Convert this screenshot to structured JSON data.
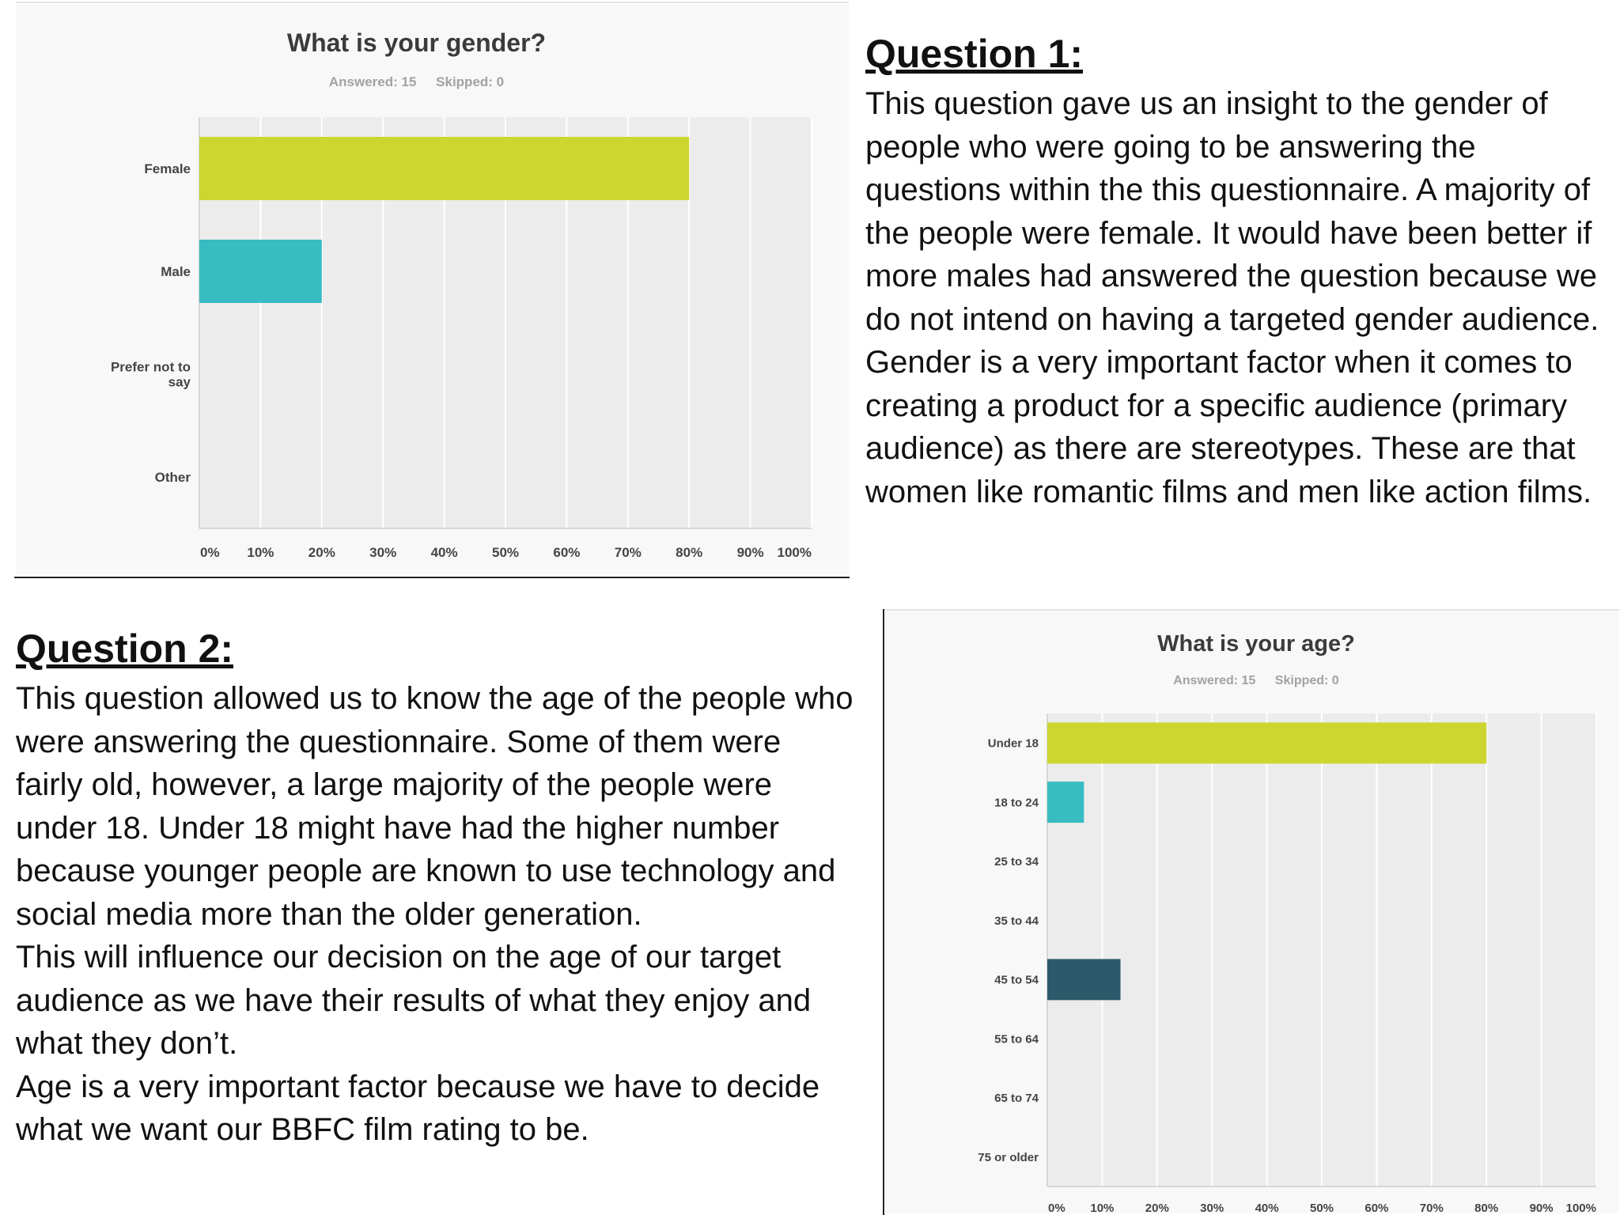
{
  "question1": {
    "heading": "Question 1:",
    "paragraphs": [
      "This question gave us an insight to the gender of people who were going to be answering the questions within the this questionnaire. A majority of the people were female. It would have been better if more males had answered the question because we do not intend on having a targeted gender audience.",
      "Gender is a very important factor when it comes to creating a product for a specific audience (primary audience) as there are stereotypes. These are that women like romantic films and men like action films."
    ]
  },
  "question2": {
    "heading": "Question 2:",
    "paragraphs": [
      "This question allowed us to know the age of the people who were answering the questionnaire. Some of them were fairly old, however, a large majority of the people were under 18. Under 18 might have had the higher number because younger people are known to use technology and social media more than the older generation.",
      "This will influence our decision on the age of our target audience as we have their results of what they enjoy and what they don’t.",
      "Age is a very important factor because we have to decide what we want our BBFC film rating to be."
    ]
  },
  "chart_data": [
    {
      "type": "bar",
      "orientation": "horizontal",
      "title": "What is your gender?",
      "answered": "Answered: 15",
      "skipped": "Skipped: 0",
      "categories": [
        "Female",
        "Male",
        "Prefer not to say",
        "Other"
      ],
      "values": [
        80,
        20,
        0,
        0
      ],
      "colors": [
        "#cdd62e",
        "#36bcc1",
        "#cdd62e",
        "#cdd62e"
      ],
      "xlim": [
        0,
        100
      ],
      "xticks": [
        "0%",
        "10%",
        "20%",
        "30%",
        "40%",
        "50%",
        "60%",
        "70%",
        "80%",
        "90%",
        "100%"
      ],
      "grid": true,
      "plot_bg": "#ececec"
    },
    {
      "type": "bar",
      "orientation": "horizontal",
      "title": "What is your age?",
      "answered": "Answered: 15",
      "skipped": "Skipped: 0",
      "categories": [
        "Under 18",
        "18 to 24",
        "25 to 34",
        "35 to 44",
        "45 to 54",
        "55 to 64",
        "65 to 74",
        "75 or older"
      ],
      "values": [
        80,
        6.67,
        0,
        0,
        13.33,
        0,
        0,
        0
      ],
      "colors": [
        "#cdd62e",
        "#36bcc1",
        "#cdd62e",
        "#cdd62e",
        "#2b5b6b",
        "#cdd62e",
        "#cdd62e",
        "#cdd62e"
      ],
      "xlim": [
        0,
        100
      ],
      "xticks": [
        "0%",
        "10%",
        "20%",
        "30%",
        "40%",
        "50%",
        "60%",
        "70%",
        "80%",
        "90%",
        "100%"
      ],
      "grid": true,
      "plot_bg": "#ececec"
    }
  ]
}
